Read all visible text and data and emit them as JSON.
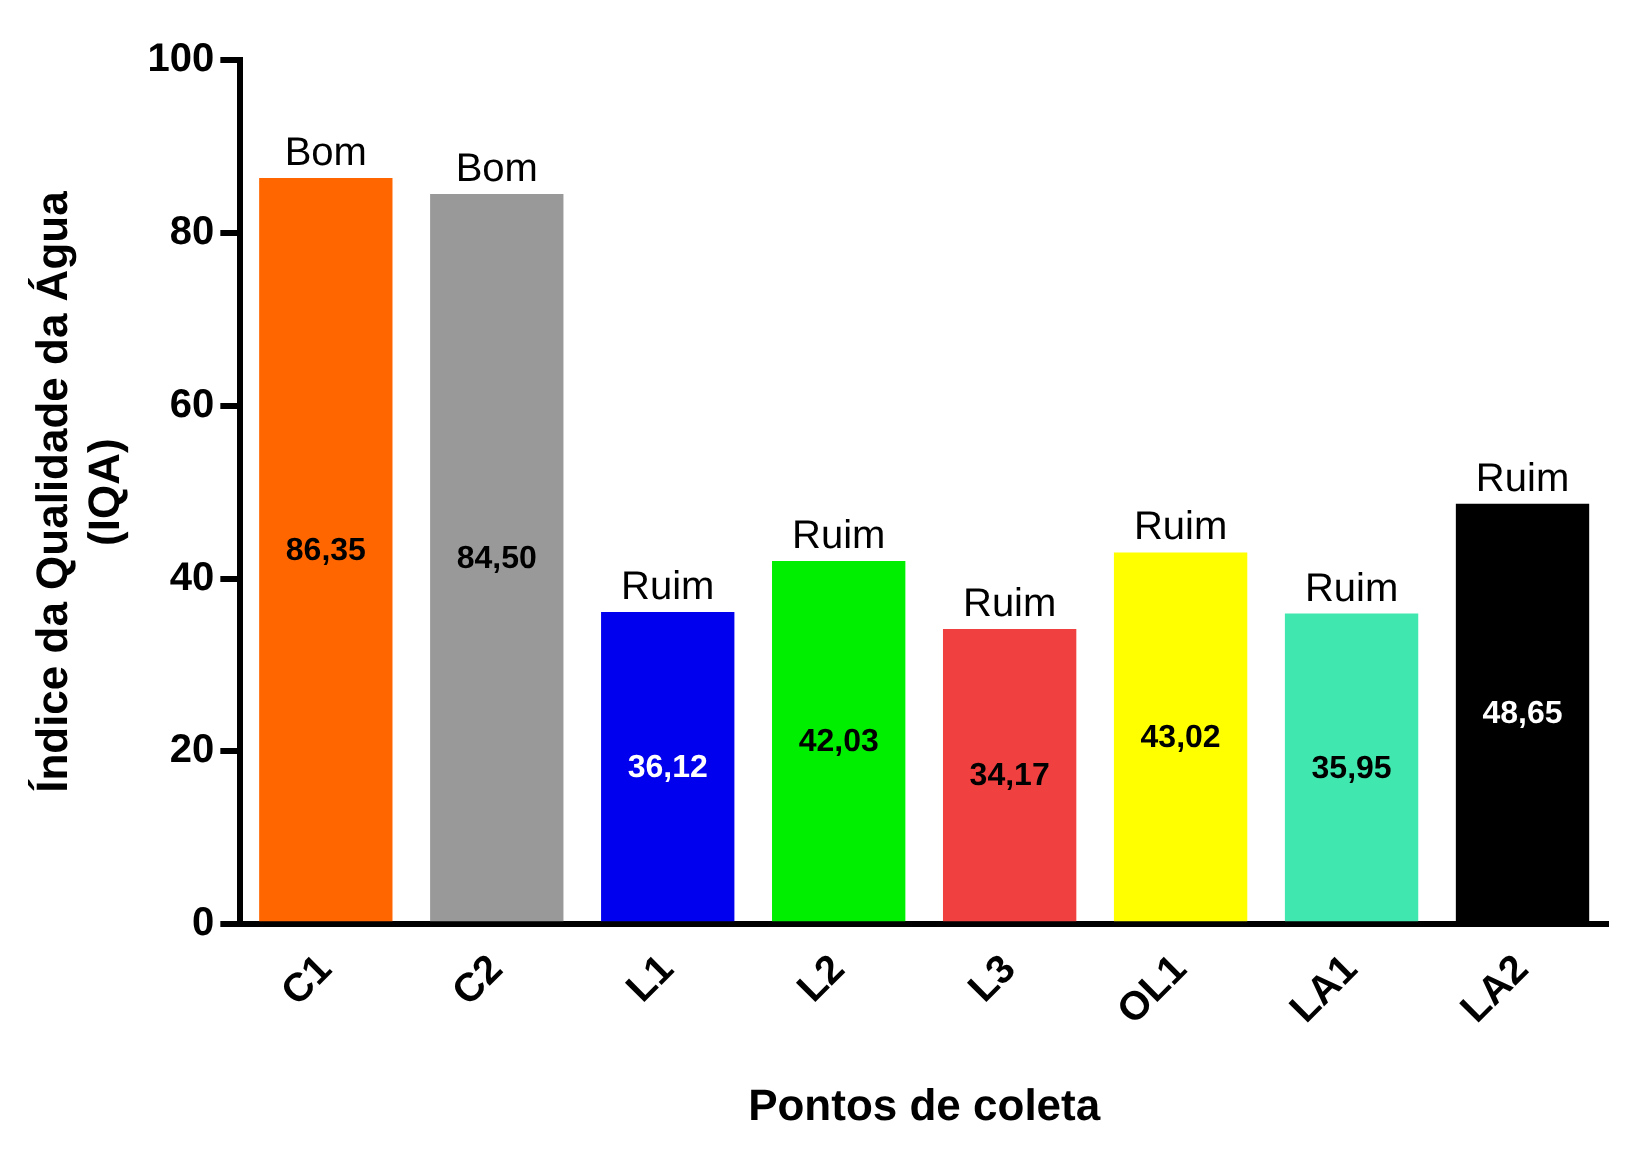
{
  "chart_data": {
    "type": "bar",
    "xlabel": "Pontos de coleta",
    "ylabel": "Índice da Qualidade da Água (IQA)",
    "categories": [
      "C1",
      "C2",
      "L1",
      "L2",
      "L3",
      "OL1",
      "LA1",
      "LA2"
    ],
    "values": [
      86.35,
      84.5,
      36.12,
      42.03,
      34.17,
      43.02,
      35.95,
      48.65
    ],
    "colors": [
      "#ff6600",
      "#999999",
      "#0000ee",
      "#00ee00",
      "#f04040",
      "#ffff00",
      "#40e8b0",
      "#000000"
    ],
    "value_labels": [
      "86,35",
      "84,50",
      "36,12",
      "42,03",
      "34,17",
      "43,02",
      "35,95",
      "48,65"
    ],
    "annotations": [
      {
        "text": "Bom",
        "x": "C1",
        "y": 86.35
      },
      {
        "text": "Bom",
        "x": "C2",
        "y": 84.5
      },
      {
        "text": "Ruim",
        "x": "L1",
        "y": 36.12
      },
      {
        "text": "Ruim",
        "x": "L2",
        "y": 42.03
      },
      {
        "text": "Ruim",
        "x": "L3",
        "y": 34.17
      },
      {
        "text": "Ruim",
        "x": "OL1",
        "y": 43.02
      },
      {
        "text": "Ruim",
        "x": "LA1",
        "y": 35.95
      },
      {
        "text": "Ruim",
        "x": "LA2",
        "y": 48.65
      }
    ],
    "ylim": [
      0,
      100
    ],
    "yticks": [
      0,
      20,
      40,
      60,
      80,
      100
    ],
    "grid": false,
    "legend": false
  }
}
